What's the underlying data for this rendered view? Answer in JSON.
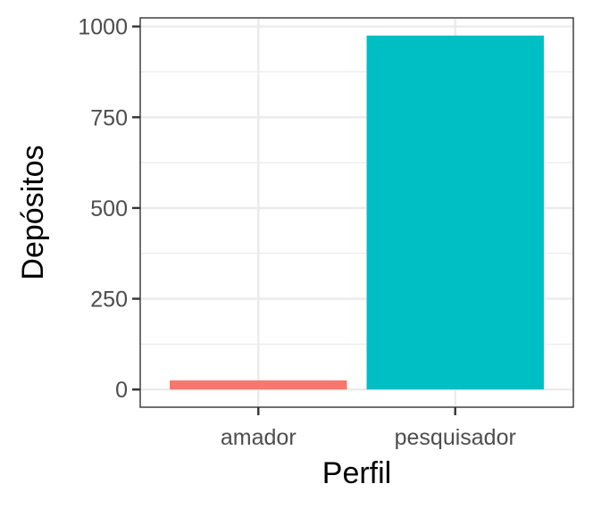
{
  "chart_data": {
    "type": "bar",
    "categories": [
      "amador",
      "pesquisador"
    ],
    "values": [
      25,
      975
    ],
    "colors": [
      "#F8766D",
      "#00BFC4"
    ],
    "title": "",
    "xlabel": "Perfil",
    "ylabel": "Depósitos",
    "ylim": [
      -48.75,
      1023.75
    ],
    "yticks": [
      0,
      250,
      500,
      750,
      1000
    ],
    "ytick_labels": [
      "0",
      "250",
      "500",
      "750",
      "1000"
    ],
    "grid": true,
    "legend": "none"
  }
}
